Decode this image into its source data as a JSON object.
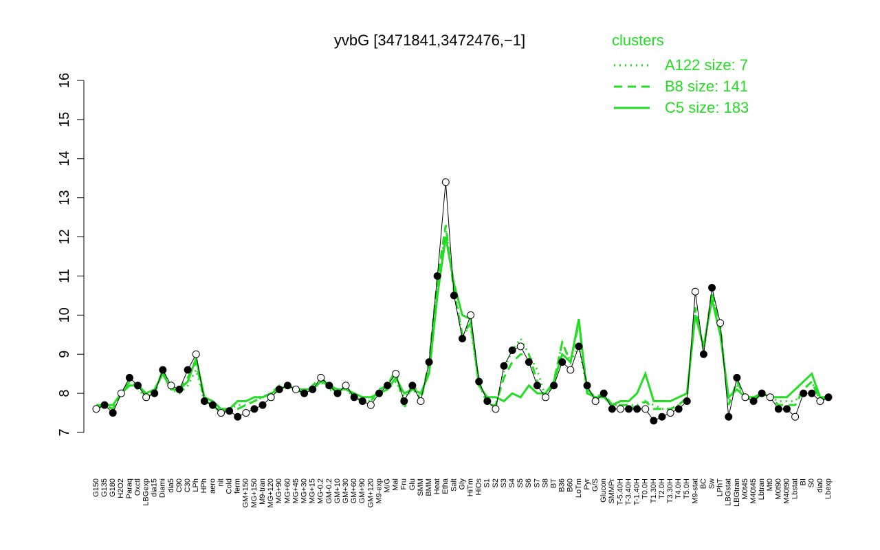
{
  "chart_data": {
    "type": "line",
    "title": "yvbG [3471841,3472476,−1]",
    "legend_title": "clusters",
    "legend_position": "top-right",
    "ylim": [
      7,
      16
    ],
    "yticks": [
      7,
      8,
      9,
      10,
      11,
      12,
      13,
      14,
      15,
      16
    ],
    "point_color": "#000000",
    "categories": [
      "G150",
      "G135",
      "G180",
      "H2O2",
      "Paraq",
      "Oxctl",
      "LBGexp",
      "dia15",
      "Diami",
      "dia5",
      "C90",
      "C30",
      "LPh",
      "HPh",
      "aero",
      "nit",
      "Cold",
      "ferm",
      "GM+150",
      "MG+150",
      "M9-tran",
      "MG+120",
      "MG+90",
      "MG+60",
      "MG+45",
      "MG+30",
      "MG+15",
      "MG-0.2",
      "GM-0.2",
      "GM+10",
      "GM+30",
      "GM+60",
      "GM+90",
      "GM+120",
      "M9-exp",
      "M/G",
      "Mal",
      "Fru",
      "Glu",
      "SMM",
      "BMM",
      "Heat",
      "Etha",
      "Salt",
      "Gly",
      "HiTm",
      "HiOs",
      "S1",
      "S2",
      "S3",
      "S4",
      "S5",
      "S6",
      "S7",
      "S8",
      "BT",
      "B36",
      "B60",
      "LoTm",
      "Pyr",
      "G/S",
      "Glucon",
      "SMMPr",
      "T-5.40H",
      "T-3.40H",
      "T-1.40H",
      "T0.0H",
      "T1.30H",
      "T2.0H",
      "T3.30H",
      "T4.0H",
      "T5.0H",
      "M9-stat",
      "BC",
      "Sw",
      "LPhT",
      "LBGstat",
      "LBGtran",
      "M0t45",
      "M40t45",
      "Lbtran",
      "Mt0",
      "M0t90",
      "M40t90",
      "Lbstat",
      "BI",
      "S0",
      "dia0",
      "Lbexp"
    ],
    "values": [
      7.6,
      7.7,
      7.5,
      8.0,
      8.4,
      8.2,
      7.9,
      8.0,
      8.6,
      8.2,
      8.1,
      8.6,
      9.0,
      7.8,
      7.7,
      7.5,
      7.55,
      7.4,
      7.5,
      7.6,
      7.7,
      7.9,
      8.1,
      8.2,
      8.1,
      8.0,
      8.1,
      8.4,
      8.2,
      8.0,
      8.2,
      7.9,
      7.8,
      7.7,
      8.0,
      8.2,
      8.5,
      7.8,
      8.2,
      7.8,
      8.8,
      11.0,
      13.4,
      10.5,
      9.4,
      10.0,
      8.3,
      7.8,
      7.6,
      8.7,
      9.1,
      9.2,
      8.8,
      8.2,
      7.9,
      8.2,
      8.8,
      8.6,
      9.2,
      8.2,
      7.8,
      8.0,
      7.6,
      7.6,
      7.6,
      7.6,
      7.6,
      7.3,
      7.4,
      7.5,
      7.6,
      7.8,
      10.6,
      9.0,
      10.7,
      9.8,
      7.4,
      8.4,
      7.9,
      7.8,
      8.0,
      7.9,
      7.6,
      7.6,
      7.4,
      8.0,
      8.0,
      7.8,
      7.9
    ],
    "series": [
      {
        "name": "A122 size: 7",
        "color": "#22dd22",
        "dash": "dotted",
        "values": [
          7.6,
          7.7,
          7.6,
          8.0,
          8.3,
          8.1,
          7.9,
          8.0,
          8.6,
          8.1,
          8.0,
          8.2,
          8.6,
          7.8,
          7.7,
          7.6,
          7.6,
          7.7,
          7.7,
          7.8,
          7.9,
          8.0,
          8.1,
          8.2,
          8.1,
          8.0,
          8.1,
          8.3,
          8.1,
          8.0,
          8.1,
          7.9,
          7.8,
          7.8,
          8.0,
          8.1,
          8.3,
          7.9,
          8.1,
          7.9,
          8.6,
          10.7,
          12.2,
          10.7,
          9.5,
          9.7,
          8.2,
          7.8,
          7.6,
          8.6,
          9.1,
          9.4,
          9.0,
          8.6,
          7.9,
          8.3,
          9.3,
          8.8,
          9.2,
          8.1,
          7.8,
          8.0,
          7.7,
          7.7,
          7.7,
          7.7,
          7.8,
          7.7,
          7.6,
          7.6,
          7.7,
          7.9,
          10.1,
          9.1,
          10.5,
          9.6,
          7.8,
          8.2,
          7.9,
          7.8,
          8.0,
          7.9,
          7.8,
          7.8,
          7.8,
          8.1,
          8.3,
          7.8,
          7.9
        ]
      },
      {
        "name": "B8 size: 141",
        "color": "#22dd22",
        "dash": "dashed",
        "values": [
          7.6,
          7.7,
          7.6,
          8.0,
          8.3,
          8.2,
          7.9,
          8.0,
          8.6,
          8.1,
          8.1,
          8.4,
          8.8,
          7.8,
          7.7,
          7.5,
          7.6,
          7.6,
          7.7,
          7.8,
          7.9,
          8.0,
          8.2,
          8.2,
          8.1,
          8.0,
          8.2,
          8.4,
          8.2,
          8.0,
          8.2,
          7.9,
          7.8,
          7.8,
          8.1,
          8.2,
          8.6,
          7.6,
          8.3,
          7.8,
          8.8,
          10.9,
          12.3,
          10.6,
          9.5,
          9.8,
          8.3,
          7.7,
          7.7,
          8.4,
          8.8,
          9.0,
          9.0,
          8.3,
          7.9,
          8.3,
          9.3,
          8.8,
          9.8,
          8.1,
          7.9,
          8.0,
          7.7,
          7.7,
          7.7,
          7.6,
          7.8,
          7.6,
          7.6,
          7.6,
          7.7,
          7.9,
          10.2,
          9.1,
          10.6,
          9.7,
          7.7,
          8.3,
          7.9,
          7.8,
          8.0,
          7.9,
          7.7,
          7.7,
          7.7,
          8.1,
          8.3,
          7.8,
          7.9
        ]
      },
      {
        "name": "C5 size: 183",
        "color": "#22dd22",
        "dash": "solid",
        "values": [
          7.7,
          7.7,
          7.7,
          8.0,
          8.2,
          8.2,
          8.0,
          8.1,
          8.5,
          8.1,
          8.1,
          8.3,
          8.9,
          7.9,
          7.8,
          7.6,
          7.6,
          7.8,
          7.8,
          7.9,
          7.9,
          8.0,
          8.1,
          8.2,
          8.1,
          8.1,
          8.1,
          8.3,
          8.2,
          8.1,
          8.1,
          8.0,
          7.9,
          7.9,
          8.0,
          8.1,
          8.4,
          8.0,
          8.1,
          8.0,
          8.5,
          10.5,
          12.0,
          10.8,
          10.0,
          9.9,
          8.2,
          7.9,
          7.9,
          7.8,
          8.0,
          7.9,
          8.2,
          8.0,
          8.0,
          8.3,
          9.0,
          8.8,
          9.9,
          8.0,
          7.9,
          7.9,
          7.7,
          7.8,
          7.8,
          8.0,
          8.5,
          7.8,
          7.8,
          7.8,
          7.9,
          8.0,
          10.0,
          9.2,
          10.4,
          9.5,
          7.9,
          8.1,
          7.9,
          7.9,
          8.0,
          7.9,
          7.9,
          7.9,
          8.1,
          8.3,
          8.5,
          7.9,
          7.9
        ]
      }
    ]
  }
}
